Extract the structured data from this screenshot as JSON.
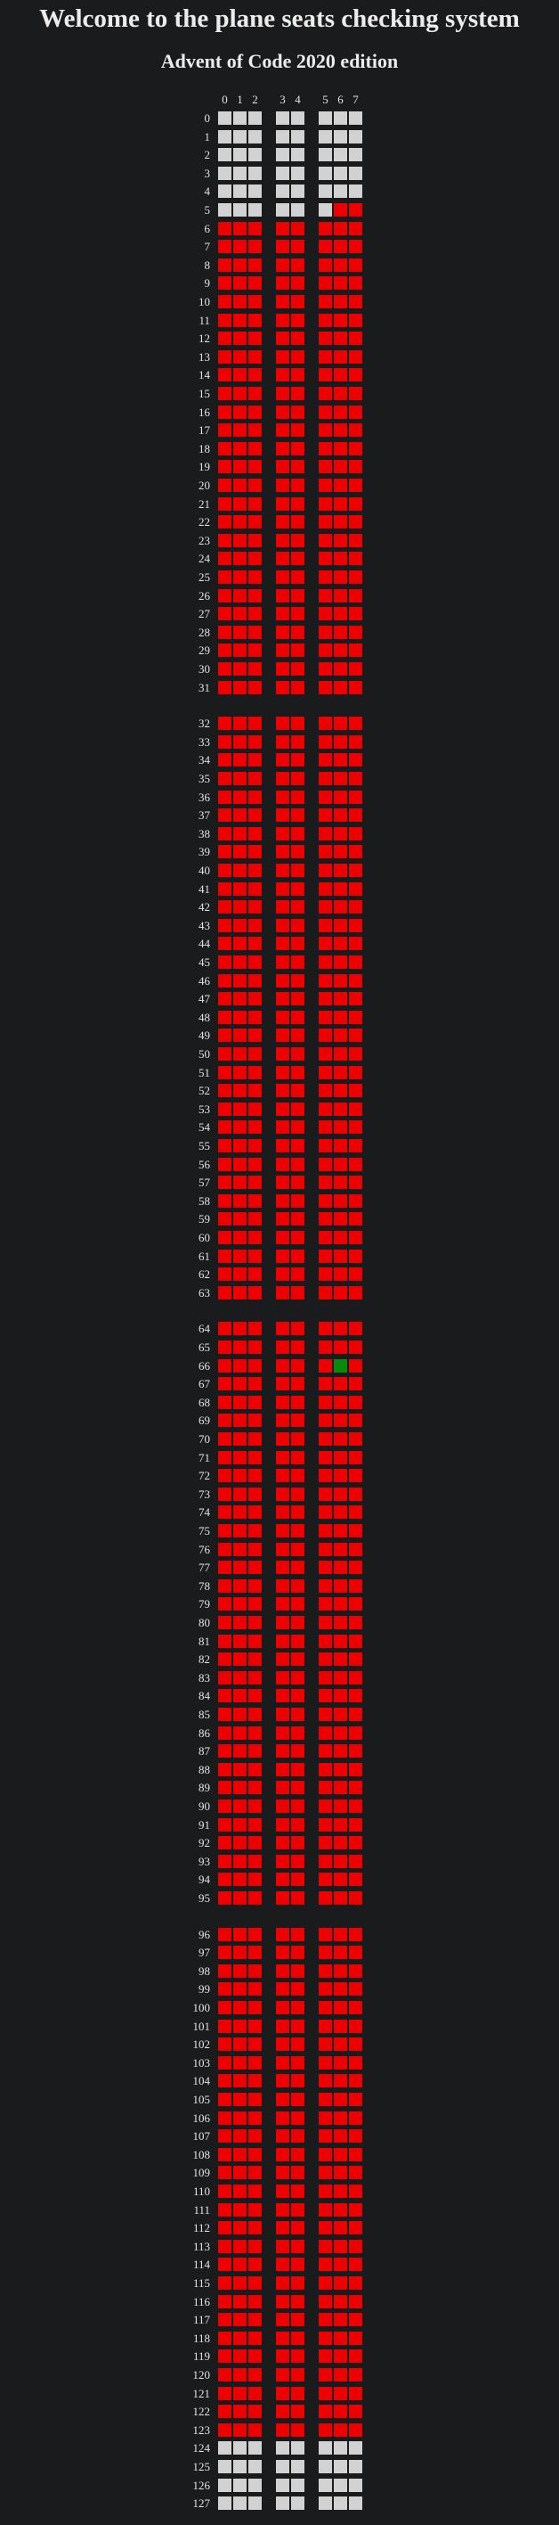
{
  "page": {
    "title": "Welcome to the plane seats checking system",
    "subtitle": "Advent of Code 2020 edition"
  },
  "seat_map": {
    "columns": [
      0,
      1,
      2,
      3,
      4,
      5,
      6,
      7
    ],
    "row_count": 128,
    "colors": {
      "empty": "#d2d2d2",
      "taken": "#ee0000",
      "mine": "#0a8a0a",
      "background": "#1a1b1d"
    },
    "empty_seats": [
      [
        0,
        0
      ],
      [
        0,
        1
      ],
      [
        0,
        2
      ],
      [
        0,
        3
      ],
      [
        0,
        4
      ],
      [
        0,
        5
      ],
      [
        0,
        6
      ],
      [
        0,
        7
      ],
      [
        1,
        0
      ],
      [
        1,
        1
      ],
      [
        1,
        2
      ],
      [
        1,
        3
      ],
      [
        1,
        4
      ],
      [
        1,
        5
      ],
      [
        1,
        6
      ],
      [
        1,
        7
      ],
      [
        2,
        0
      ],
      [
        2,
        1
      ],
      [
        2,
        2
      ],
      [
        2,
        3
      ],
      [
        2,
        4
      ],
      [
        2,
        5
      ],
      [
        2,
        6
      ],
      [
        2,
        7
      ],
      [
        3,
        0
      ],
      [
        3,
        1
      ],
      [
        3,
        2
      ],
      [
        3,
        3
      ],
      [
        3,
        4
      ],
      [
        3,
        5
      ],
      [
        3,
        6
      ],
      [
        3,
        7
      ],
      [
        4,
        0
      ],
      [
        4,
        1
      ],
      [
        4,
        2
      ],
      [
        4,
        3
      ],
      [
        4,
        4
      ],
      [
        4,
        5
      ],
      [
        4,
        6
      ],
      [
        4,
        7
      ],
      [
        5,
        0
      ],
      [
        5,
        1
      ],
      [
        5,
        2
      ],
      [
        5,
        3
      ],
      [
        5,
        4
      ],
      [
        5,
        5
      ],
      [
        124,
        0
      ],
      [
        124,
        1
      ],
      [
        124,
        2
      ],
      [
        124,
        3
      ],
      [
        124,
        4
      ],
      [
        124,
        5
      ],
      [
        124,
        6
      ],
      [
        124,
        7
      ],
      [
        125,
        0
      ],
      [
        125,
        1
      ],
      [
        125,
        2
      ],
      [
        125,
        3
      ],
      [
        125,
        4
      ],
      [
        125,
        5
      ],
      [
        125,
        6
      ],
      [
        125,
        7
      ],
      [
        126,
        0
      ],
      [
        126,
        1
      ],
      [
        126,
        2
      ],
      [
        126,
        3
      ],
      [
        126,
        4
      ],
      [
        126,
        5
      ],
      [
        126,
        6
      ],
      [
        126,
        7
      ],
      [
        127,
        0
      ],
      [
        127,
        1
      ],
      [
        127,
        2
      ],
      [
        127,
        3
      ],
      [
        127,
        4
      ],
      [
        127,
        5
      ],
      [
        127,
        6
      ],
      [
        127,
        7
      ]
    ],
    "my_seat": [
      66,
      6
    ]
  }
}
